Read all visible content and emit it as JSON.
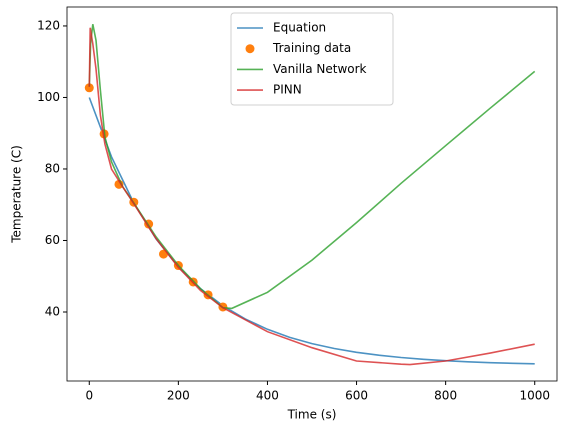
{
  "chart_data": {
    "type": "line",
    "xlabel": "Time (s)",
    "ylabel": "Temperature (C)",
    "xlim": [
      -50,
      1050
    ],
    "xticks": [
      0,
      200,
      400,
      600,
      800,
      1000
    ],
    "ylim": [
      20.7,
      125.3
    ],
    "yticks": [
      40,
      60,
      80,
      100,
      120
    ],
    "legend": "upper center",
    "series": [
      {
        "name": "Equation",
        "color": "#1f77b4",
        "mode": "line",
        "x": [
          0,
          50,
          100,
          150,
          200,
          250,
          300,
          350,
          400,
          450,
          500,
          550,
          600,
          650,
          700,
          750,
          800,
          850,
          900,
          950,
          1000
        ],
        "values": [
          100,
          83.41,
          70.49,
          60.43,
          52.59,
          46.49,
          41.73,
          38.03,
          35.15,
          32.9,
          31.16,
          29.79,
          28.73,
          27.91,
          27.27,
          26.76,
          26.37,
          26.07,
          25.83,
          25.65,
          25.5
        ]
      },
      {
        "name": "Training data",
        "color": "#ff7f0e",
        "mode": "markers",
        "x": [
          0,
          33.3,
          66.7,
          100,
          133.3,
          166.7,
          200,
          233.3,
          266.7,
          300
        ],
        "values": [
          102.7,
          89.8,
          75.7,
          70.7,
          64.6,
          56.2,
          53,
          48.4,
          44.8,
          41.4
        ]
      },
      {
        "name": "Vanilla Network",
        "color": "#2ca02c",
        "mode": "line",
        "x": [
          0,
          3,
          8,
          15,
          25,
          35,
          50,
          75,
          100,
          150,
          200,
          250,
          300,
          320,
          400,
          500,
          600,
          700,
          800,
          900,
          1000
        ],
        "values": [
          103,
          115,
          120.5,
          116,
          102,
          89,
          82,
          75,
          70.5,
          61,
          53,
          46.5,
          41.2,
          41,
          45.5,
          54.5,
          65,
          76,
          86.5,
          97,
          107.3
        ]
      },
      {
        "name": "PINN",
        "color": "#d62728",
        "mode": "line",
        "x": [
          0,
          2,
          8,
          15,
          25,
          35,
          50,
          75,
          100,
          150,
          200,
          250,
          300,
          400,
          500,
          600,
          700,
          720,
          800,
          900,
          1000
        ],
        "values": [
          103,
          119.5,
          115,
          108,
          95,
          87,
          80,
          75,
          70.3,
          60.5,
          52.5,
          46,
          41.2,
          34.5,
          30,
          26.3,
          25.4,
          25.3,
          26.3,
          28.5,
          31
        ]
      }
    ]
  }
}
